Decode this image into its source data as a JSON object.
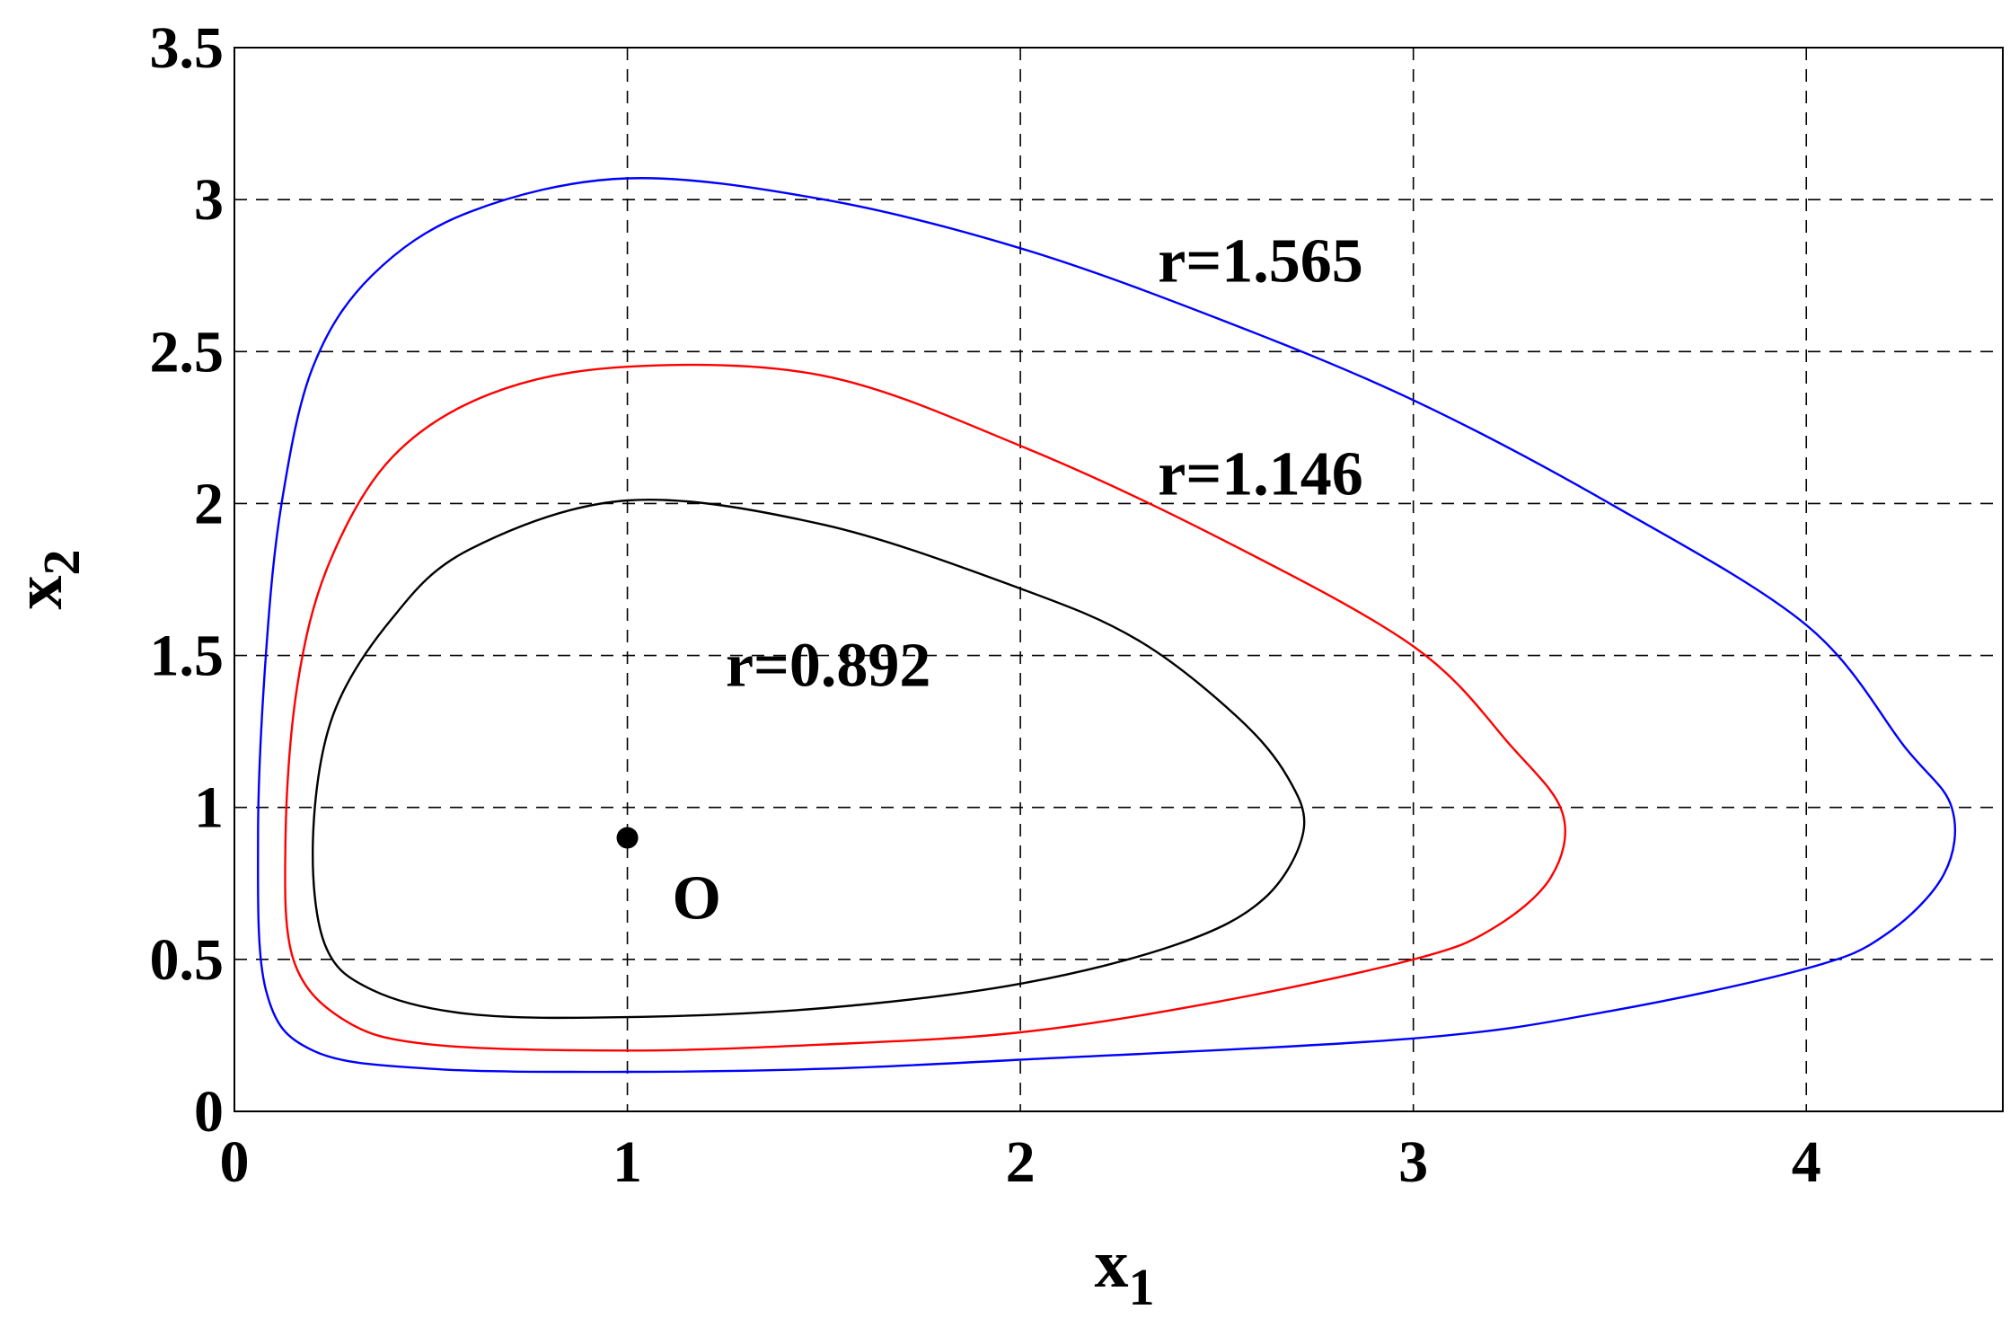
{
  "chart_data": {
    "type": "line",
    "title": "",
    "xlabel": "x",
    "xlabel_subscript": "1",
    "ylabel": "x",
    "ylabel_subscript": "2",
    "xlim": [
      0,
      4.5
    ],
    "ylim": [
      0,
      3.5
    ],
    "xticks": [
      0,
      1,
      2,
      3,
      4
    ],
    "xtick_labels": [
      "0",
      "1",
      "2",
      "3",
      "4"
    ],
    "yticks": [
      0,
      0.5,
      1,
      1.5,
      2,
      2.5,
      3,
      3.5
    ],
    "ytick_labels": [
      "0",
      "0.5",
      "1",
      "1.5",
      "2",
      "2.5",
      "3",
      "3.5"
    ],
    "grid": true,
    "grid_style": "dashed",
    "equilibrium": {
      "label": "O",
      "x": 1.0,
      "y": 0.9
    },
    "series": [
      {
        "color": "#0000ff",
        "label": "r=1.565",
        "label_pos": {
          "x": 2.35,
          "y": 2.73
        },
        "points": [
          [
            1.0,
            3.07
          ],
          [
            1.5,
            3.0
          ],
          [
            2.0,
            2.84
          ],
          [
            2.5,
            2.61
          ],
          [
            3.0,
            2.34
          ],
          [
            3.5,
            2.0
          ],
          [
            4.0,
            1.6
          ],
          [
            4.25,
            1.2
          ],
          [
            4.37,
            1.0
          ],
          [
            4.35,
            0.78
          ],
          [
            4.2,
            0.58
          ],
          [
            4.0,
            0.47
          ],
          [
            3.5,
            0.33
          ],
          [
            3.0,
            0.24
          ],
          [
            2.0,
            0.17
          ],
          [
            1.5,
            0.14
          ],
          [
            1.0,
            0.13
          ],
          [
            0.5,
            0.14
          ],
          [
            0.2,
            0.2
          ],
          [
            0.08,
            0.4
          ],
          [
            0.06,
            0.9
          ],
          [
            0.08,
            1.5
          ],
          [
            0.12,
            2.0
          ],
          [
            0.2,
            2.45
          ],
          [
            0.35,
            2.75
          ],
          [
            0.6,
            2.96
          ],
          [
            1.0,
            3.07
          ]
        ]
      },
      {
        "color": "#ff0000",
        "label": "r=1.146",
        "label_pos": {
          "x": 2.35,
          "y": 2.03
        },
        "points": [
          [
            1.0,
            2.45
          ],
          [
            1.5,
            2.42
          ],
          [
            2.0,
            2.19
          ],
          [
            2.5,
            1.89
          ],
          [
            3.0,
            1.53
          ],
          [
            3.25,
            1.2
          ],
          [
            3.38,
            0.98
          ],
          [
            3.35,
            0.77
          ],
          [
            3.2,
            0.6
          ],
          [
            3.0,
            0.5
          ],
          [
            2.5,
            0.36
          ],
          [
            2.0,
            0.26
          ],
          [
            1.5,
            0.22
          ],
          [
            1.0,
            0.2
          ],
          [
            0.5,
            0.22
          ],
          [
            0.28,
            0.3
          ],
          [
            0.15,
            0.5
          ],
          [
            0.13,
            0.9
          ],
          [
            0.16,
            1.4
          ],
          [
            0.24,
            1.8
          ],
          [
            0.4,
            2.15
          ],
          [
            0.65,
            2.36
          ],
          [
            1.0,
            2.45
          ]
        ]
      },
      {
        "color": "#000000",
        "label": "r=0.892",
        "label_pos": {
          "x": 1.25,
          "y": 1.4
        },
        "points": [
          [
            1.0,
            2.01
          ],
          [
            1.5,
            1.93
          ],
          [
            2.0,
            1.72
          ],
          [
            2.3,
            1.55
          ],
          [
            2.55,
            1.3
          ],
          [
            2.68,
            1.1
          ],
          [
            2.72,
            0.92
          ],
          [
            2.62,
            0.7
          ],
          [
            2.4,
            0.55
          ],
          [
            2.0,
            0.42
          ],
          [
            1.5,
            0.34
          ],
          [
            1.0,
            0.31
          ],
          [
            0.6,
            0.32
          ],
          [
            0.35,
            0.4
          ],
          [
            0.23,
            0.55
          ],
          [
            0.2,
            0.9
          ],
          [
            0.25,
            1.3
          ],
          [
            0.4,
            1.62
          ],
          [
            0.6,
            1.85
          ],
          [
            1.0,
            2.01
          ]
        ]
      }
    ]
  }
}
